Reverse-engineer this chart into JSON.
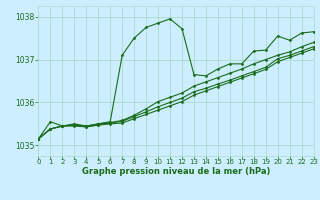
{
  "title": "Graphe pression niveau de la mer (hPa)",
  "background_color": "#cceeff",
  "grid_color": "#aaddcc",
  "line_color": "#1a6b1a",
  "tick_color": "#1a6b1a",
  "xlim": [
    0,
    23
  ],
  "ylim": [
    1034.75,
    1038.25
  ],
  "yticks": [
    1035,
    1036,
    1037,
    1038
  ],
  "xticks": [
    0,
    1,
    2,
    3,
    4,
    5,
    6,
    7,
    8,
    9,
    10,
    11,
    12,
    13,
    14,
    15,
    16,
    17,
    18,
    19,
    20,
    21,
    22,
    23
  ],
  "series": [
    [
      1035.15,
      1035.55,
      1035.45,
      1035.5,
      1035.45,
      1035.5,
      1035.55,
      1037.1,
      1037.5,
      1037.75,
      1037.85,
      1037.95,
      1037.72,
      1036.65,
      1036.62,
      1036.78,
      1036.9,
      1036.9,
      1037.2,
      1037.22,
      1037.55,
      1037.45,
      1037.62,
      1037.65
    ],
    [
      1035.15,
      1035.38,
      1035.45,
      1035.45,
      1035.43,
      1035.47,
      1035.5,
      1035.52,
      1035.62,
      1035.72,
      1035.82,
      1035.92,
      1036.02,
      1036.17,
      1036.27,
      1036.37,
      1036.47,
      1036.57,
      1036.67,
      1036.77,
      1036.95,
      1037.05,
      1037.15,
      1037.25
    ],
    [
      1035.15,
      1035.38,
      1035.45,
      1035.47,
      1035.43,
      1035.48,
      1035.52,
      1035.56,
      1035.67,
      1035.78,
      1035.9,
      1036.0,
      1036.1,
      1036.25,
      1036.33,
      1036.43,
      1036.52,
      1036.62,
      1036.72,
      1036.82,
      1037.02,
      1037.1,
      1037.2,
      1037.3
    ],
    [
      1035.15,
      1035.38,
      1035.45,
      1035.48,
      1035.44,
      1035.5,
      1035.53,
      1035.58,
      1035.7,
      1035.85,
      1036.02,
      1036.12,
      1036.22,
      1036.38,
      1036.48,
      1036.58,
      1036.68,
      1036.78,
      1036.9,
      1037.0,
      1037.1,
      1037.18,
      1037.3,
      1037.4
    ]
  ]
}
